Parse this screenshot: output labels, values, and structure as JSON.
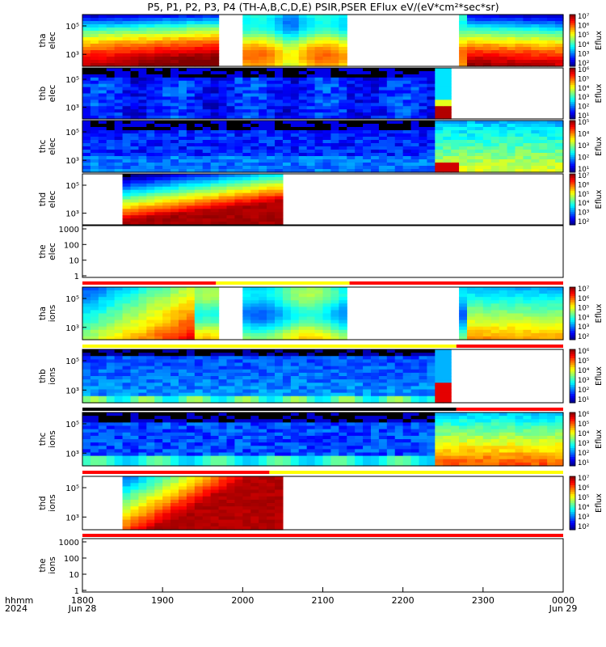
{
  "chart_data": {
    "type": "heatmap",
    "title": "P5, P1, P2, P3, P4 (TH-A,B,C,D,E) PSIR,PSER EFlux eV/(eV*cm²*sec*sr)",
    "xlabel": "hhmm",
    "x_sub_label": "2024",
    "x_ticks": [
      {
        "label": "1800",
        "date": "Jun 28"
      },
      {
        "label": "1900",
        "date": ""
      },
      {
        "label": "2000",
        "date": ""
      },
      {
        "label": "2100",
        "date": ""
      },
      {
        "label": "2200",
        "date": ""
      },
      {
        "label": "2300",
        "date": ""
      },
      {
        "label": "0000",
        "date": "Jun 29"
      }
    ],
    "time_range": [
      "2024-06-28 18:00",
      "2024-06-29 00:00"
    ],
    "colorbar_label": "Eflux",
    "panels": [
      {
        "id": "tha_elec",
        "ylabel": [
          "tha",
          "elec"
        ],
        "yticks": [
          "10⁵",
          "10³"
        ],
        "colorbar_ticks": [
          "10⁷",
          "10⁶",
          "10⁵",
          "10⁴",
          "10³",
          "10²"
        ],
        "kind": "spectro",
        "profile": "hot_tha"
      },
      {
        "id": "thb_elec",
        "ylabel": [
          "thb",
          "elec"
        ],
        "yticks": [
          "10⁵",
          "10³"
        ],
        "colorbar_ticks": [
          "10⁶",
          "10⁵",
          "10⁴",
          "10³",
          "10²",
          "10¹"
        ],
        "kind": "spectro",
        "profile": "cold_thb"
      },
      {
        "id": "thc_elec",
        "ylabel": [
          "thc",
          "elec"
        ],
        "yticks": [
          "10⁵",
          "10³"
        ],
        "colorbar_ticks": [
          "10⁵",
          "10⁴",
          "10³",
          "10²",
          "10¹"
        ],
        "kind": "spectro",
        "profile": "cold_thc"
      },
      {
        "id": "thd_elec",
        "ylabel": [
          "thd",
          "elec"
        ],
        "yticks": [
          "10⁵",
          "10³"
        ],
        "colorbar_ticks": [
          "10⁷",
          "10⁶",
          "10⁵",
          "10⁴",
          "10³",
          "10²"
        ],
        "kind": "spectro",
        "profile": "hot_thd"
      },
      {
        "id": "the_elec",
        "ylabel": [
          "the",
          "elec"
        ],
        "yticks": [
          "1000",
          "100",
          "10",
          "1"
        ],
        "kind": "empty"
      },
      {
        "id": "tha_ions",
        "ylabel": [
          "tha",
          "ions"
        ],
        "yticks": [
          "10⁵",
          "10³"
        ],
        "colorbar_ticks": [
          "10⁷",
          "10⁶",
          "10⁵",
          "10⁴",
          "10³",
          "10²"
        ],
        "kind": "spectro",
        "profile": "ion_tha"
      },
      {
        "id": "thb_ions",
        "ylabel": [
          "thb",
          "ions"
        ],
        "yticks": [
          "10⁵",
          "10³"
        ],
        "colorbar_ticks": [
          "10⁶",
          "10⁵",
          "10⁴",
          "10³",
          "10²",
          "10¹"
        ],
        "kind": "spectro",
        "profile": "ion_thb"
      },
      {
        "id": "thc_ions",
        "ylabel": [
          "thc",
          "ions"
        ],
        "yticks": [
          "10⁵",
          "10³"
        ],
        "colorbar_ticks": [
          "10⁶",
          "10⁵",
          "10⁴",
          "10³",
          "10²",
          "10¹"
        ],
        "kind": "spectro",
        "profile": "ion_thc"
      },
      {
        "id": "thd_ions",
        "ylabel": [
          "thd",
          "ions"
        ],
        "yticks": [
          "10⁵",
          "10³"
        ],
        "colorbar_ticks": [
          "10⁷",
          "10⁶",
          "10⁵",
          "10⁴",
          "10³",
          "10²"
        ],
        "kind": "spectro",
        "profile": "ion_thd"
      },
      {
        "id": "the_ions",
        "ylabel": [
          "the",
          "ions"
        ],
        "yticks": [
          "1000",
          "100",
          "10",
          "1"
        ],
        "kind": "empty"
      }
    ],
    "mode_bars": [
      {
        "after_panel": "the_elec",
        "segments": [
          [
            "18:00",
            "19:40",
            "red"
          ],
          [
            "19:40",
            "21:20",
            "yellow"
          ],
          [
            "21:20",
            "24:00",
            "red"
          ]
        ]
      },
      {
        "after_panel": "tha_ions",
        "segments": [
          [
            "18:00",
            "22:40",
            "yellow"
          ],
          [
            "22:40",
            "24:00",
            "red"
          ]
        ]
      },
      {
        "after_panel": "thb_ions",
        "segments": [
          [
            "18:00",
            "22:40",
            "black"
          ],
          [
            "22:40",
            "24:00",
            "red"
          ]
        ]
      },
      {
        "after_panel": "thc_ions",
        "segments": [
          [
            "18:00",
            "20:20",
            "red"
          ],
          [
            "20:20",
            "24:00",
            "yellow"
          ]
        ]
      },
      {
        "after_panel": "thd_ions",
        "segments": [
          [
            "18:00",
            "24:00",
            "red"
          ]
        ]
      }
    ],
    "data_gaps": {
      "tha": [
        [
          "19:43",
          "20:00"
        ],
        [
          "21:20",
          "22:40"
        ]
      ],
      "thb": [
        [
          "22:40",
          "24:00"
        ]
      ],
      "thd": [
        [
          "18:00",
          "18:30"
        ],
        [
          "20:30",
          "24:00"
        ]
      ]
    }
  }
}
